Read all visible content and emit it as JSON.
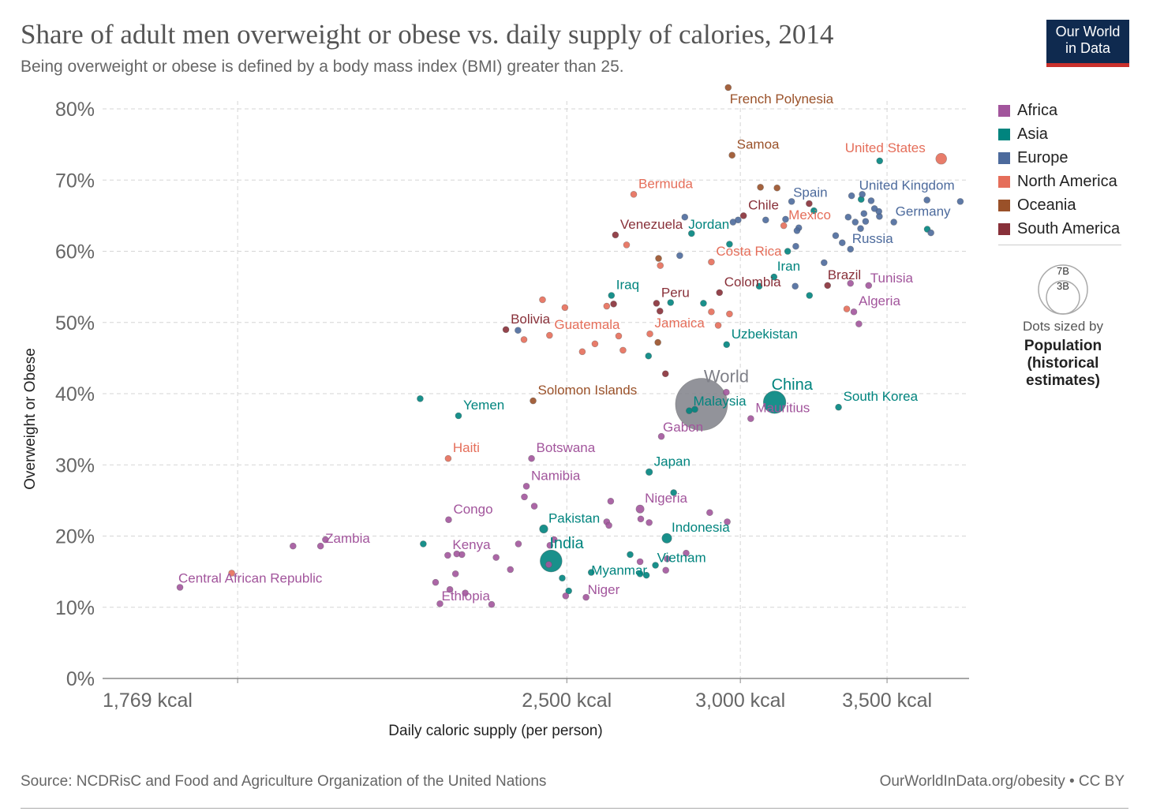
{
  "header": {
    "title": "Share of adult men overweight or obese vs. daily supply of calories, 2014",
    "subtitle": "Being overweight or obese is defined by a body mass index (BMI) greater than 25.",
    "logo_line1": "Our World",
    "logo_line2": "in Data"
  },
  "footer": {
    "source": "Source: NCDRisC and Food and Agriculture Organization of the United Nations",
    "license": "OurWorldInData.org/obesity • CC BY"
  },
  "legend": {
    "items": [
      {
        "label": "Africa",
        "color": "#a2559c"
      },
      {
        "label": "Asia",
        "color": "#00847e"
      },
      {
        "label": "Europe",
        "color": "#4c6a9c"
      },
      {
        "label": "North America",
        "color": "#e56e5a"
      },
      {
        "label": "Oceania",
        "color": "#9a5129"
      },
      {
        "label": "South America",
        "color": "#883039"
      }
    ],
    "size_big": "7B",
    "size_small": "3B",
    "size_note": "Dots sized by",
    "size_strong_1": "Population",
    "size_strong_2": "(historical",
    "size_strong_3": "estimates)"
  },
  "chart_data": {
    "type": "scatter",
    "title": "Share of adult men overweight or obese vs. daily supply of calories, 2014",
    "subtitle": "Being overweight or obese is defined by a body mass index (BMI) greater than 25.",
    "xlabel": "Daily caloric supply (per person)",
    "ylabel": "Overweight or Obese",
    "x_scale": "log",
    "xlim": [
      1535,
      3815
    ],
    "ylim": [
      0,
      82
    ],
    "x_ticks": [
      {
        "value": 1769,
        "label": "1,769 kcal"
      },
      {
        "value": 2500,
        "label": "2,500 kcal"
      },
      {
        "value": 3000,
        "label": "3,000 kcal"
      },
      {
        "value": 3500,
        "label": "3,500 kcal"
      }
    ],
    "y_ticks": [
      {
        "value": 0,
        "label": "0%"
      },
      {
        "value": 10,
        "label": "10%"
      },
      {
        "value": 20,
        "label": "20%"
      },
      {
        "value": 30,
        "label": "30%"
      },
      {
        "value": 40,
        "label": "40%"
      },
      {
        "value": 50,
        "label": "50%"
      },
      {
        "value": 60,
        "label": "60%"
      },
      {
        "value": 70,
        "label": "70%"
      },
      {
        "value": 80,
        "label": "80%"
      }
    ],
    "grid": true,
    "legend_position": "right",
    "labeled_points": [
      {
        "name": "French Polynesia",
        "region": "Oceania",
        "x": 2962,
        "y": 83.0
      },
      {
        "name": "Samoa",
        "region": "Oceania",
        "x": 2974,
        "y": 73.5
      },
      {
        "name": "United States",
        "region": "North America",
        "x": 3705,
        "y": 73.0,
        "pop": 0.32
      },
      {
        "name": "Bermuda",
        "region": "North America",
        "x": 2682,
        "y": 68.0
      },
      {
        "name": "Spain",
        "region": "Europe",
        "x": 3166,
        "y": 67.0
      },
      {
        "name": "United Kingdom",
        "region": "Europe",
        "x": 3410,
        "y": 68.0
      },
      {
        "name": "Chile",
        "region": "South America",
        "x": 3010,
        "y": 65.0
      },
      {
        "name": "Mexico",
        "region": "North America",
        "x": 3140,
        "y": 63.6
      },
      {
        "name": "Jordan",
        "region": "Asia",
        "x": 2850,
        "y": 62.5
      },
      {
        "name": "Venezuela",
        "region": "South America",
        "x": 2631,
        "y": 62.3
      },
      {
        "name": "Germany",
        "region": "Europe",
        "x": 3525,
        "y": 64.1
      },
      {
        "name": "Russia",
        "region": "Europe",
        "x": 3368,
        "y": 60.3
      },
      {
        "name": "Costa Rica",
        "region": "North America",
        "x": 2910,
        "y": 58.5
      },
      {
        "name": "Iran",
        "region": "Asia",
        "x": 3108,
        "y": 56.4
      },
      {
        "name": "Brazil",
        "region": "South America",
        "x": 3288,
        "y": 55.2
      },
      {
        "name": "Tunisia",
        "region": "Africa",
        "x": 3433,
        "y": 55.2
      },
      {
        "name": "Iraq",
        "region": "Asia",
        "x": 2620,
        "y": 53.8
      },
      {
        "name": "Colombia",
        "region": "South America",
        "x": 2935,
        "y": 54.2
      },
      {
        "name": "Peru",
        "region": "South America",
        "x": 2747,
        "y": 52.7
      },
      {
        "name": "Algeria",
        "region": "Africa",
        "x": 3380,
        "y": 51.5
      },
      {
        "name": "Bolivia",
        "region": "South America",
        "x": 2345,
        "y": 49.0
      },
      {
        "name": "Guatemala",
        "region": "North America",
        "x": 2455,
        "y": 48.2
      },
      {
        "name": "Jamaica",
        "region": "North America",
        "x": 2728,
        "y": 48.4
      },
      {
        "name": "Uzbekistan",
        "region": "Asia",
        "x": 2957,
        "y": 46.9
      },
      {
        "name": "World",
        "region": "World",
        "x": 2880,
        "y": 38.5,
        "pop": 7.3
      },
      {
        "name": "Malaysia",
        "region": "Asia",
        "x": 2860,
        "y": 37.8
      },
      {
        "name": "China",
        "region": "Asia",
        "x": 3110,
        "y": 38.8,
        "pop": 1.37
      },
      {
        "name": "South Korea",
        "region": "Asia",
        "x": 3326,
        "y": 38.1
      },
      {
        "name": "Solomon Islands",
        "region": "Oceania",
        "x": 2413,
        "y": 39.0
      },
      {
        "name": "Yemen",
        "region": "Asia",
        "x": 2231,
        "y": 36.9
      },
      {
        "name": "Mauritius",
        "region": "Africa",
        "x": 3033,
        "y": 36.5
      },
      {
        "name": "Gabon",
        "region": "Africa",
        "x": 2761,
        "y": 34.0
      },
      {
        "name": "Haiti",
        "region": "North America",
        "x": 2207,
        "y": 30.9
      },
      {
        "name": "Botswana",
        "region": "Africa",
        "x": 2409,
        "y": 30.9
      },
      {
        "name": "Japan",
        "region": "Asia",
        "x": 2726,
        "y": 29.0,
        "pop": 0.127
      },
      {
        "name": "Namibia",
        "region": "Africa",
        "x": 2396,
        "y": 27.0
      },
      {
        "name": "Nigeria",
        "region": "Africa",
        "x": 2700,
        "y": 23.8,
        "pop": 0.18
      },
      {
        "name": "Congo",
        "region": "Africa",
        "x": 2208,
        "y": 22.3
      },
      {
        "name": "Pakistan",
        "region": "Asia",
        "x": 2440,
        "y": 21.0,
        "pop": 0.19
      },
      {
        "name": "Indonesia",
        "region": "Asia",
        "x": 2777,
        "y": 19.7,
        "pop": 0.26
      },
      {
        "name": "Zambia",
        "region": "Africa",
        "x": 1930,
        "y": 18.6
      },
      {
        "name": "Kenya",
        "region": "Africa",
        "x": 2206,
        "y": 17.3
      },
      {
        "name": "India",
        "region": "Asia",
        "x": 2459,
        "y": 16.5,
        "pop": 1.3
      },
      {
        "name": "Vietnam",
        "region": "Asia",
        "x": 2744,
        "y": 15.9
      },
      {
        "name": "Myanmar",
        "region": "Asia",
        "x": 2565,
        "y": 14.9
      },
      {
        "name": "Central African Republic",
        "region": "Africa",
        "x": 1665,
        "y": 12.8
      },
      {
        "name": "Niger",
        "region": "Africa",
        "x": 2551,
        "y": 11.4
      },
      {
        "name": "Ethiopia",
        "region": "Africa",
        "x": 2188,
        "y": 10.5
      }
    ],
    "unlabeled_points": [
      {
        "region": "Europe",
        "x": 3780,
        "y": 67.0
      },
      {
        "region": "Europe",
        "x": 3650,
        "y": 67.2
      },
      {
        "region": "Asia",
        "x": 3651,
        "y": 63.1
      },
      {
        "region": "Europe",
        "x": 3665,
        "y": 62.6
      },
      {
        "region": "Asia",
        "x": 3473,
        "y": 72.7
      },
      {
        "region": "Europe",
        "x": 3472,
        "y": 64.9
      },
      {
        "region": "Europe",
        "x": 3470,
        "y": 65.6
      },
      {
        "region": "Europe",
        "x": 3454,
        "y": 66.0
      },
      {
        "region": "Europe",
        "x": 3442,
        "y": 67.1
      },
      {
        "region": "Europe",
        "x": 3422,
        "y": 64.2
      },
      {
        "region": "Europe",
        "x": 3416,
        "y": 65.3
      },
      {
        "region": "Europe",
        "x": 3404,
        "y": 63.2
      },
      {
        "region": "Asia",
        "x": 3406,
        "y": 67.3
      },
      {
        "region": "Europe",
        "x": 3385,
        "y": 64.1
      },
      {
        "region": "Europe",
        "x": 3372,
        "y": 67.8
      },
      {
        "region": "Europe",
        "x": 3360,
        "y": 64.8
      },
      {
        "region": "Europe",
        "x": 3339,
        "y": 61.2
      },
      {
        "region": "Europe",
        "x": 3316,
        "y": 62.2
      },
      {
        "region": "Europe",
        "x": 3276,
        "y": 58.4
      },
      {
        "region": "Asia",
        "x": 3241,
        "y": 65.7
      },
      {
        "region": "Asia",
        "x": 3226,
        "y": 53.8
      },
      {
        "region": "South America",
        "x": 3225,
        "y": 66.7
      },
      {
        "region": "Europe",
        "x": 3190,
        "y": 63.3
      },
      {
        "region": "Europe",
        "x": 3184,
        "y": 62.9
      },
      {
        "region": "Europe",
        "x": 3180,
        "y": 60.7
      },
      {
        "region": "Europe",
        "x": 3178,
        "y": 55.1
      },
      {
        "region": "Asia",
        "x": 3153,
        "y": 60.0
      },
      {
        "region": "Europe",
        "x": 3146,
        "y": 64.5
      },
      {
        "region": "Oceania",
        "x": 3118,
        "y": 68.9
      },
      {
        "region": "Europe",
        "x": 3081,
        "y": 64.4
      },
      {
        "region": "Oceania",
        "x": 3064,
        "y": 69.0
      },
      {
        "region": "Asia",
        "x": 3060,
        "y": 55.1
      },
      {
        "region": "Africa",
        "x": 3398,
        "y": 49.8
      },
      {
        "region": "North America",
        "x": 3355,
        "y": 51.9
      },
      {
        "region": "Africa",
        "x": 3368,
        "y": 55.5
      },
      {
        "region": "North America",
        "x": 2966,
        "y": 51.2
      },
      {
        "region": "North America",
        "x": 2931,
        "y": 49.6
      },
      {
        "region": "North America",
        "x": 2910,
        "y": 51.5
      },
      {
        "region": "Europe",
        "x": 2993,
        "y": 64.4
      },
      {
        "region": "Europe",
        "x": 2977,
        "y": 64.1
      },
      {
        "region": "Europe",
        "x": 2830,
        "y": 64.8
      },
      {
        "region": "Europe",
        "x": 2815,
        "y": 59.4
      },
      {
        "region": "Asia",
        "x": 2966,
        "y": 61.0
      },
      {
        "region": "Asia",
        "x": 2886,
        "y": 52.7
      },
      {
        "region": "Oceania",
        "x": 2753,
        "y": 59.0
      },
      {
        "region": "North America",
        "x": 2758,
        "y": 58.0
      },
      {
        "region": "Asia",
        "x": 2788,
        "y": 52.8
      },
      {
        "region": "South America",
        "x": 2757,
        "y": 51.6
      },
      {
        "region": "North America",
        "x": 2662,
        "y": 60.9
      },
      {
        "region": "North America",
        "x": 2607,
        "y": 52.3
      },
      {
        "region": "South America",
        "x": 2626,
        "y": 52.6
      },
      {
        "region": "North America",
        "x": 2640,
        "y": 48.1
      },
      {
        "region": "North America",
        "x": 2652,
        "y": 46.1
      },
      {
        "region": "North America",
        "x": 2575,
        "y": 47.0
      },
      {
        "region": "North America",
        "x": 2541,
        "y": 45.9
      },
      {
        "region": "North America",
        "x": 2495,
        "y": 52.1
      },
      {
        "region": "North America",
        "x": 2437,
        "y": 53.2
      },
      {
        "region": "North America",
        "x": 2390,
        "y": 47.6
      },
      {
        "region": "Europe",
        "x": 2375,
        "y": 48.9
      },
      {
        "region": "Oceania",
        "x": 2751,
        "y": 47.2
      },
      {
        "region": "Asia",
        "x": 2724,
        "y": 45.3
      },
      {
        "region": "South America",
        "x": 2773,
        "y": 42.8
      },
      {
        "region": "Africa",
        "x": 2956,
        "y": 40.2
      },
      {
        "region": "Asia",
        "x": 2843,
        "y": 37.6
      },
      {
        "region": "Asia",
        "x": 2143,
        "y": 39.3
      },
      {
        "region": "Africa",
        "x": 2416,
        "y": 24.2
      },
      {
        "region": "Africa",
        "x": 2391,
        "y": 25.5
      },
      {
        "region": "Africa",
        "x": 2618,
        "y": 24.9
      },
      {
        "region": "Africa",
        "x": 2607,
        "y": 22.0
      },
      {
        "region": "Africa",
        "x": 2613,
        "y": 21.5
      },
      {
        "region": "Africa",
        "x": 2702,
        "y": 22.4
      },
      {
        "region": "Africa",
        "x": 2726,
        "y": 21.9
      },
      {
        "region": "Asia",
        "x": 2797,
        "y": 26.1
      },
      {
        "region": "Africa",
        "x": 2905,
        "y": 23.3
      },
      {
        "region": "Africa",
        "x": 2959,
        "y": 22.0
      },
      {
        "region": "Africa",
        "x": 2834,
        "y": 17.6
      },
      {
        "region": "Asia",
        "x": 2672,
        "y": 17.4
      },
      {
        "region": "Africa",
        "x": 2700,
        "y": 16.4
      },
      {
        "region": "Africa",
        "x": 2778,
        "y": 16.8
      },
      {
        "region": "Africa",
        "x": 2774,
        "y": 15.2
      },
      {
        "region": "Asia",
        "x": 2700,
        "y": 14.7
      },
      {
        "region": "Asia",
        "x": 2718,
        "y": 14.5
      },
      {
        "region": "Africa",
        "x": 2467,
        "y": 19.5
      },
      {
        "region": "Africa",
        "x": 2456,
        "y": 18.7
      },
      {
        "region": "Africa",
        "x": 2453,
        "y": 16.0
      },
      {
        "region": "Asia",
        "x": 2488,
        "y": 14.1
      },
      {
        "region": "Asia",
        "x": 2505,
        "y": 12.3
      },
      {
        "region": "Africa",
        "x": 2497,
        "y": 11.6
      },
      {
        "region": "Africa",
        "x": 2376,
        "y": 18.9
      },
      {
        "region": "Africa",
        "x": 2321,
        "y": 17.0
      },
      {
        "region": "Africa",
        "x": 2356,
        "y": 15.3
      },
      {
        "region": "Africa",
        "x": 2239,
        "y": 17.4
      },
      {
        "region": "Africa",
        "x": 2227,
        "y": 17.5
      },
      {
        "region": "Africa",
        "x": 2224,
        "y": 14.7
      },
      {
        "region": "Africa",
        "x": 2211,
        "y": 12.5
      },
      {
        "region": "Africa",
        "x": 2247,
        "y": 12.0
      },
      {
        "region": "Africa",
        "x": 2310,
        "y": 10.4
      },
      {
        "region": "Africa",
        "x": 1940,
        "y": 19.5
      },
      {
        "region": "Africa",
        "x": 1875,
        "y": 18.6
      },
      {
        "region": "Asia",
        "x": 2150,
        "y": 18.9
      },
      {
        "region": "Africa",
        "x": 2178,
        "y": 13.5
      },
      {
        "region": "North America",
        "x": 1758,
        "y": 14.8
      }
    ]
  }
}
